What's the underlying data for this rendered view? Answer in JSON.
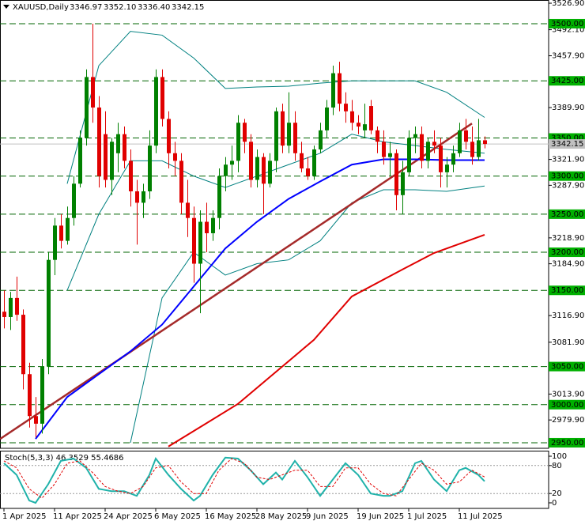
{
  "chart_data": [
    {
      "type": "candlestick",
      "symbol": "XAUUSD,Daily",
      "ohlc_header": [
        "3346.97",
        "3352.10",
        "3336.40",
        "3342.15"
      ],
      "categories": [
        "1 Apr 2025",
        null,
        null,
        null,
        null,
        null,
        null,
        null,
        "11 Apr 2025",
        null,
        null,
        null,
        null,
        null,
        null,
        null,
        "24 Apr 2025",
        null,
        null,
        null,
        null,
        null,
        null,
        null,
        "6 May 2025",
        null,
        null,
        null,
        null,
        null,
        null,
        null,
        "16 May 2025",
        null,
        null,
        null,
        null,
        null,
        null,
        null,
        "28 May 2025",
        null,
        null,
        null,
        null,
        null,
        null,
        null,
        "9 Jun 2025",
        null,
        null,
        null,
        null,
        null,
        null,
        null,
        "19 Jun 2025",
        null,
        null,
        null,
        null,
        null,
        null,
        null,
        "1 Jul 2025",
        null,
        null,
        null,
        null,
        null,
        null,
        null,
        "11 Jul 2025",
        null,
        null,
        null,
        null
      ],
      "open": [
        3122,
        3115,
        3140,
        3118,
        3040,
        2985,
        2975,
        3050,
        3190,
        3235,
        3215,
        3245,
        3290,
        3350,
        3430,
        3390,
        3355,
        3295,
        3330,
        3355,
        3320,
        3280,
        3265,
        3280,
        3340,
        3430,
        3375,
        3330,
        3320,
        3265,
        3245,
        3185,
        3240,
        3225,
        3245,
        3300,
        3315,
        3320,
        3370,
        3345,
        3295,
        3325,
        3290,
        3320,
        3385,
        3340,
        3370,
        3330,
        3310,
        3300,
        3335,
        3360,
        3390,
        3435,
        3395,
        3385,
        3370,
        3360,
        3392,
        3360,
        3345,
        3325,
        3330,
        3275,
        3305,
        3350,
        3355,
        3320,
        3345,
        3340,
        3305,
        3315,
        3330,
        3360,
        3345,
        3325,
        3346.97
      ],
      "high": [
        3150,
        3148,
        3168,
        3125,
        3055,
        3010,
        3060,
        3200,
        3245,
        3250,
        3260,
        3300,
        3360,
        3440,
        3500,
        3405,
        3385,
        3350,
        3370,
        3365,
        3335,
        3295,
        3290,
        3360,
        3440,
        3440,
        3385,
        3345,
        3330,
        3295,
        3260,
        3255,
        3265,
        3255,
        3310,
        3325,
        3340,
        3380,
        3375,
        3355,
        3335,
        3330,
        3330,
        3390,
        3395,
        3410,
        3385,
        3345,
        3325,
        3340,
        3370,
        3400,
        3445,
        3450,
        3410,
        3400,
        3380,
        3395,
        3400,
        3365,
        3360,
        3345,
        3335,
        3320,
        3360,
        3365,
        3365,
        3350,
        3360,
        3350,
        3325,
        3340,
        3370,
        3375,
        3365,
        3375,
        3352.1
      ],
      "low": [
        3100,
        3098,
        3110,
        3020,
        2970,
        2957,
        2962,
        3040,
        3170,
        3205,
        3210,
        3235,
        3285,
        3340,
        3370,
        3285,
        3285,
        3275,
        3305,
        3310,
        3260,
        3210,
        3245,
        3270,
        3330,
        3365,
        3310,
        3300,
        3250,
        3220,
        3160,
        3120,
        3200,
        3215,
        3230,
        3280,
        3295,
        3305,
        3330,
        3285,
        3285,
        3250,
        3285,
        3305,
        3330,
        3330,
        3320,
        3305,
        3295,
        3295,
        3330,
        3350,
        3380,
        3385,
        3370,
        3360,
        3355,
        3350,
        3355,
        3330,
        3315,
        3300,
        3255,
        3250,
        3300,
        3330,
        3310,
        3310,
        3330,
        3285,
        3285,
        3305,
        3325,
        3335,
        3315,
        3320,
        3336.4
      ],
      "close": [
        3115,
        3140,
        3118,
        3040,
        2985,
        2975,
        3050,
        3190,
        3235,
        3215,
        3245,
        3290,
        3350,
        3430,
        3390,
        3300,
        3295,
        3345,
        3355,
        3320,
        3280,
        3265,
        3280,
        3340,
        3430,
        3375,
        3330,
        3320,
        3265,
        3245,
        3185,
        3240,
        3225,
        3245,
        3300,
        3315,
        3320,
        3370,
        3345,
        3295,
        3325,
        3290,
        3320,
        3385,
        3340,
        3370,
        3330,
        3310,
        3300,
        3335,
        3360,
        3390,
        3435,
        3395,
        3385,
        3370,
        3365,
        3368,
        3360,
        3345,
        3325,
        3330,
        3275,
        3305,
        3350,
        3355,
        3320,
        3345,
        3340,
        3305,
        3315,
        3330,
        3360,
        3345,
        3325,
        3347,
        3342.15
      ],
      "up_color": "#008000",
      "down_color": "#e00000",
      "ylim": [
        2942.7,
        3531.1
      ],
      "yticks": [
        {
          "value": 3526.9,
          "label": "3526.90"
        },
        {
          "value": 3492.1,
          "label": "3492.10"
        },
        {
          "value": 3457.9,
          "label": "3457.90"
        },
        {
          "value": 3389.9,
          "label": "3389.90"
        },
        {
          "value": 3321.9,
          "label": "3321.90"
        },
        {
          "value": 3287.9,
          "label": "3287.90"
        },
        {
          "value": 3218.9,
          "label": "3218.90"
        },
        {
          "value": 3184.9,
          "label": "3184.90"
        },
        {
          "value": 3116.9,
          "label": "3116.90"
        },
        {
          "value": 3081.9,
          "label": "3081.90"
        },
        {
          "value": 3013.9,
          "label": "3013.90"
        },
        {
          "value": 2979.9,
          "label": "2979.90"
        }
      ],
      "levels": [
        {
          "value": 3500,
          "label": "3500.00"
        },
        {
          "value": 3425,
          "label": "3425.00"
        },
        {
          "value": 3350,
          "label": "3350.00"
        },
        {
          "value": 3300,
          "label": "3300.00"
        },
        {
          "value": 3250,
          "label": "3250.00"
        },
        {
          "value": 3200,
          "label": "3200.00"
        },
        {
          "value": 3150,
          "label": "3150.00"
        },
        {
          "value": 3050,
          "label": "3050.00"
        },
        {
          "value": 3000,
          "label": "3000.00"
        },
        {
          "value": 2950,
          "label": "2950.00"
        }
      ],
      "level_color": "#006400",
      "level_box_color": "#00b000",
      "last_price": 3342.15,
      "last_price_color": "#c0c0c0",
      "overlays": [
        {
          "color": "#008080",
          "width": 1,
          "x": [
            10,
            15,
            20,
            25,
            30,
            35,
            40,
            45,
            50,
            55,
            60,
            65,
            70,
            76
          ],
          "values": [
            3290,
            3445,
            3490,
            3485,
            3455,
            3415,
            3417,
            3418,
            3422,
            3425,
            3425,
            3425,
            3410,
            3377
          ]
        },
        {
          "color": "#008080",
          "width": 1,
          "x": [
            10,
            15,
            20,
            25,
            30,
            35,
            40,
            45,
            50,
            55,
            60,
            65,
            70,
            76
          ],
          "values": [
            3150,
            3250,
            3320,
            3320,
            3300,
            3285,
            3300,
            3315,
            3330,
            3355,
            3345,
            3340,
            3335,
            3330
          ]
        },
        {
          "color": "#008080",
          "width": 1,
          "x": [
            20,
            25,
            30,
            35,
            40,
            45,
            50,
            55,
            60,
            65,
            70,
            76
          ],
          "values": [
            2950,
            3140,
            3200,
            3170,
            3185,
            3190,
            3215,
            3265,
            3282,
            3282,
            3280,
            3287
          ]
        },
        {
          "color": "#a52a2a",
          "width": 2.5,
          "x": [
            -0.6,
            74
          ],
          "values": [
            2955,
            3369
          ]
        },
        {
          "color": "#0000ff",
          "width": 2,
          "x": [
            5,
            10,
            15,
            20,
            25,
            30,
            35,
            40,
            45,
            50,
            55,
            60,
            65,
            70,
            76
          ],
          "values": [
            2955,
            3010,
            3040,
            3070,
            3105,
            3155,
            3205,
            3240,
            3270,
            3293,
            3315,
            3322,
            3322,
            3321,
            3321
          ]
        },
        {
          "color": "#e00000",
          "width": 2,
          "x": [
            26,
            37,
            49,
            55,
            62,
            68,
            76
          ],
          "values": [
            2945,
            3001,
            3085,
            3142,
            3173,
            3199,
            3223
          ]
        }
      ]
    },
    {
      "type": "line",
      "title": "Stoch(5,3,3) 46.3529 55.4686",
      "ylim": [
        -11.9,
        111.9
      ],
      "yticks": [
        100,
        80,
        20,
        0
      ],
      "levels": [
        80,
        20
      ],
      "series": [
        {
          "color": "#20b2aa",
          "dashed": false,
          "x": [
            0,
            2,
            4,
            5,
            7,
            9,
            11,
            13,
            15,
            17,
            19,
            21,
            23,
            24,
            26,
            28,
            30,
            31,
            33,
            35,
            37,
            39,
            41,
            43,
            44,
            46,
            48,
            50,
            52,
            54,
            56,
            58,
            60,
            61,
            63,
            65,
            66,
            68,
            70,
            72,
            73,
            75,
            76
          ],
          "values": [
            85,
            60,
            5,
            0,
            40,
            90,
            95,
            75,
            30,
            25,
            25,
            15,
            60,
            95,
            60,
            30,
            5,
            15,
            60,
            97,
            95,
            70,
            40,
            65,
            50,
            90,
            55,
            15,
            50,
            85,
            60,
            20,
            15,
            15,
            25,
            85,
            90,
            50,
            25,
            70,
            75,
            60,
            46.3529
          ]
        },
        {
          "color": "#e00000",
          "dashed": true,
          "x": [
            0,
            2,
            4,
            6,
            8,
            10,
            12,
            14,
            16,
            18,
            20,
            22,
            24,
            26,
            28,
            30,
            32,
            34,
            36,
            38,
            40,
            42,
            44,
            46,
            48,
            50,
            52,
            54,
            56,
            58,
            60,
            62,
            64,
            66,
            68,
            70,
            72,
            74,
            76
          ],
          "values": [
            90,
            75,
            30,
            10,
            40,
            85,
            90,
            65,
            35,
            25,
            20,
            35,
            75,
            80,
            45,
            20,
            20,
            70,
            95,
            85,
            55,
            50,
            60,
            70,
            70,
            35,
            35,
            75,
            75,
            40,
            20,
            15,
            50,
            85,
            70,
            40,
            45,
            70,
            55.4686
          ]
        }
      ]
    }
  ]
}
